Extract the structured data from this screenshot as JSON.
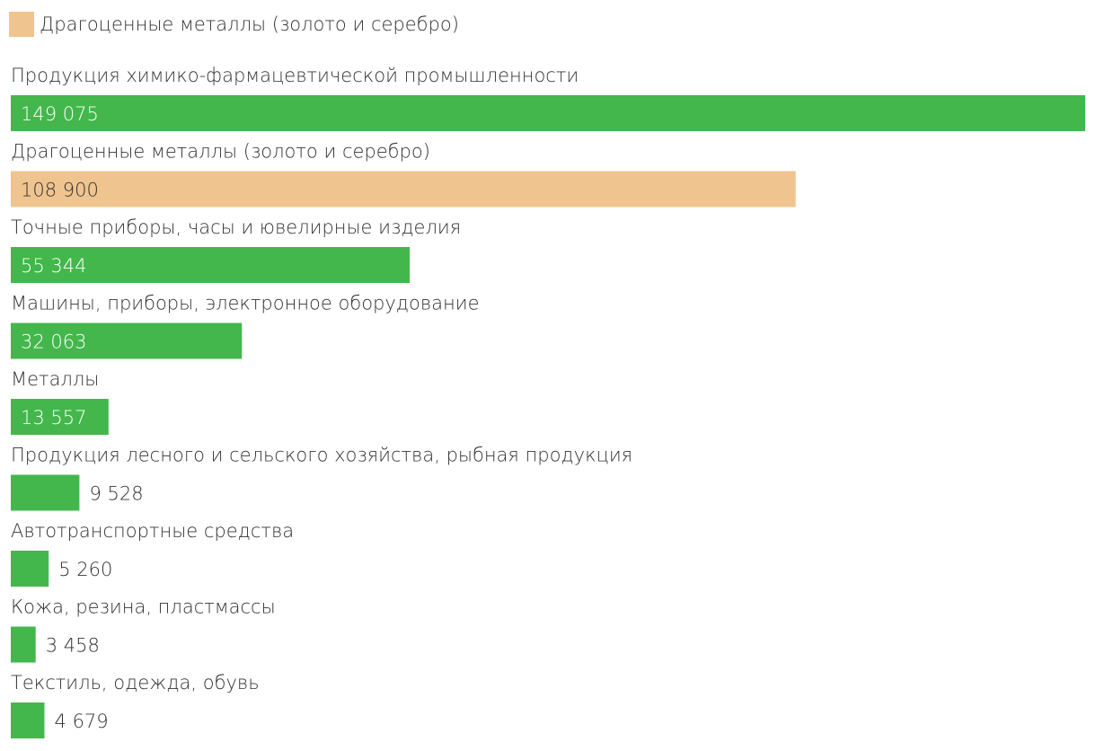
{
  "legend": {
    "label": "Драгоценные металлы (золото и серебро)",
    "color": "#f0c48f"
  },
  "colors": {
    "default_bar": "#43b74c",
    "highlight_bar": "#f0c48f",
    "label_text": "#333333",
    "value_inside_default": "#ffffff",
    "value_inside_highlight": "#333333",
    "value_outside": "#333333"
  },
  "chart_data": {
    "type": "bar",
    "orientation": "horizontal",
    "categories": [
      "Продукция химико-фармацевтической промышленности",
      "Драгоценные металлы (золото и серебро)",
      "Точные приборы, часы и ювелирные изделия",
      "Машины, приборы, электронное оборудование",
      "Металлы",
      "Продукция лесного и сельского хозяйства, рыбная продукция",
      "Автотранспортные средства",
      "Кожа, резина, пластмассы",
      "Текстиль, одежда, обувь"
    ],
    "values": [
      149075,
      108900,
      55344,
      32063,
      13557,
      9528,
      5260,
      3458,
      4679
    ],
    "value_labels": [
      "149 075",
      "108 900",
      "55 344",
      "32 063",
      "13 557",
      "9 528",
      "5 260",
      "3 458",
      "4 679"
    ],
    "highlight_index": 1,
    "xlim": [
      0,
      149075
    ],
    "grid": false,
    "legend_position": "top-left"
  }
}
